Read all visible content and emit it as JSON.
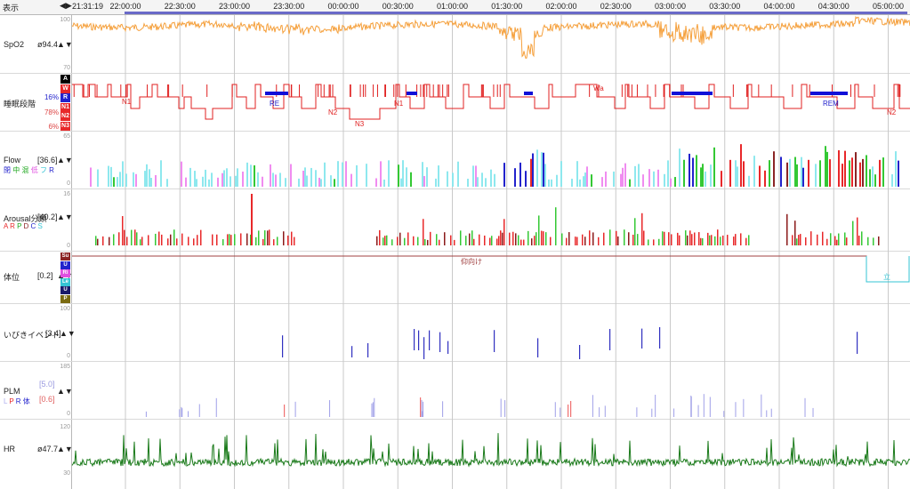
{
  "toolbar": {
    "menu_label": "表示",
    "scroll_arrows": "◀▶",
    "start_time": "21:31:19",
    "time_ticks": [
      "22:00:00",
      "22:30:00",
      "23:00:00",
      "23:30:00",
      "00:00:00",
      "00:30:00",
      "01:00:00",
      "01:30:00",
      "02:00:00",
      "02:30:00",
      "03:00:00",
      "03:30:00",
      "04:00:00",
      "04:30:00",
      "05:00:00"
    ]
  },
  "lanes": {
    "spo2": {
      "name": "SpO2",
      "avg": "ø94.4",
      "arrows": "▲▼",
      "axis_max": "100",
      "axis_min": "70",
      "color": "#f5a03c"
    },
    "sleep_stage": {
      "name": "睡眠段階",
      "arrows": "▲▼",
      "stages": [
        "A",
        "W",
        "R",
        "N1",
        "N2",
        "N3"
      ],
      "stage_colors": [
        "#000000",
        "#e8282a",
        "#2222cc",
        "#e8282a",
        "#e8282a",
        "#e8282a"
      ],
      "percentages": [
        {
          "value": "16%",
          "color": "#2222cc"
        },
        {
          "value": "78%",
          "color": "#d44"
        },
        {
          "value": "6%",
          "color": "#d44"
        }
      ],
      "stage_labels": [
        "N1",
        "RE",
        "N2",
        "N3",
        "N1",
        "Wa",
        "REM",
        "N2"
      ],
      "line_color": "#e02020",
      "rem_color": "#1010d8"
    },
    "flow": {
      "name": "Flow",
      "avg": "[36.6]",
      "arrows": "▲▼",
      "legend": [
        {
          "text": "閉",
          "color": "#2222cc"
        },
        {
          "text": "中",
          "color": "#1aa51a"
        },
        {
          "text": "混",
          "color": "#1aa51a"
        },
        {
          "text": "低",
          "color": "#e04fe0"
        },
        {
          "text": "フ",
          "color": "#35c4d4"
        },
        {
          "text": " R",
          "color": "#2222cc"
        }
      ],
      "axis_max": "65",
      "axis_min": "0",
      "colors": [
        "#8ee8ee",
        "#f08cf0",
        "#e8282a",
        "#2222cc",
        "#34c834",
        "#8b2525"
      ]
    },
    "arousal": {
      "name": "Arousal分類",
      "avg": "[40.2]",
      "arrows": "▲▼",
      "legend": [
        {
          "text": "A",
          "color": "#e8282a"
        },
        {
          "text": "R",
          "color": "#e8282a"
        },
        {
          "text": "P",
          "color": "#1aa51a"
        },
        {
          "text": "D",
          "color": "#8b2525"
        },
        {
          "text": "C",
          "color": "#2222cc"
        },
        {
          "text": "S",
          "color": "#35c4d4"
        }
      ],
      "axis_max": "16",
      "axis_min": "0",
      "colors": [
        "#e8282a",
        "#34c834",
        "#8b1a1a"
      ]
    },
    "position": {
      "name": "体位",
      "avg": "[0.2]",
      "arrows": "▲▼",
      "positions": [
        "Su",
        "U",
        "Ri",
        "Le",
        "U",
        "P"
      ],
      "position_colors": [
        "#8b2525",
        "#2222cc",
        "#e04fe0",
        "#35c4d4",
        "#1a1a6a",
        "#7a6a10"
      ],
      "label_supine": "仰向け",
      "label_upright": "立",
      "line_color": "#a04040",
      "upright_color": "#35c4d4"
    },
    "snore": {
      "name": "いびきイベント",
      "avg": "[3.4]",
      "arrows": "▲▼",
      "axis_max": "100",
      "axis_min": "0",
      "color": "#3030c0"
    },
    "plm": {
      "name": "PLM",
      "avg1": "[5.0]",
      "avg2": "[0.6]",
      "arrows": "▲▼",
      "legend": [
        {
          "text": "L",
          "color": "#b0b0ee"
        },
        {
          "text": " P",
          "color": "#e8282a"
        },
        {
          "text": " R",
          "color": "#2222cc"
        },
        {
          "text": " 体",
          "color": "#2222cc"
        }
      ],
      "axis_max": "185",
      "axis_min": "0",
      "color": "#a0a0e8",
      "color2": "#f07070"
    },
    "hr": {
      "name": "HR",
      "avg": "ø47.7",
      "arrows": "▲▼",
      "axis_max": "120",
      "axis_min": "30",
      "color": "#1a7a1a"
    }
  },
  "colors": {
    "grid": "#c9c9c9",
    "timeline_bar": "#6a6ac8"
  }
}
